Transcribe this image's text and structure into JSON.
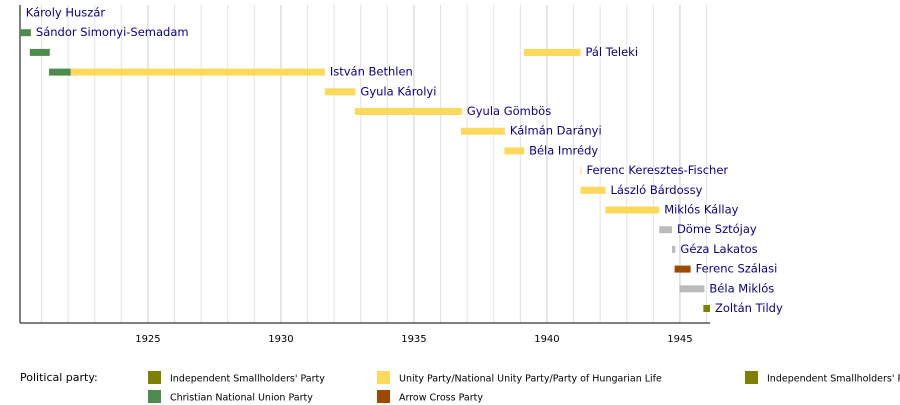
{
  "chart_data": {
    "type": "timeline",
    "xlim": [
      1920.19,
      1946.13
    ],
    "xticks": [
      1925,
      1930,
      1935,
      1940,
      1945
    ],
    "minor_xticks": [
      1921,
      1922,
      1923,
      1924,
      1925,
      1926,
      1927,
      1928,
      1929,
      1930,
      1931,
      1932,
      1933,
      1934,
      1935,
      1936,
      1937,
      1938,
      1939,
      1940,
      1941,
      1942,
      1943,
      1944,
      1945,
      1946
    ],
    "grid": true,
    "rows": [
      {
        "name": "Károly Huszár",
        "segments": [
          {
            "start": 1920.19,
            "end": 1920.22,
            "color": "#4e8b4e"
          }
        ]
      },
      {
        "name": "Sándor Simonyi-Semadam",
        "segments": [
          {
            "start": 1920.19,
            "end": 1920.6,
            "color": "#4e8b4e"
          }
        ]
      },
      {
        "name": "Pál Teleki",
        "segments": [
          {
            "start": 1920.56,
            "end": 1921.31,
            "color": "#4e8b4e"
          },
          {
            "start": 1939.14,
            "end": 1941.26,
            "color": "#fcd95a"
          }
        ]
      },
      {
        "name": "István Bethlen",
        "segments": [
          {
            "start": 1921.28,
            "end": 1922.1,
            "color": "#4e8b4e"
          },
          {
            "start": 1922.1,
            "end": 1931.65,
            "color": "#fcd95a"
          }
        ]
      },
      {
        "name": "Gyula Károlyi",
        "segments": [
          {
            "start": 1931.65,
            "end": 1932.8,
            "color": "#fcd95a"
          }
        ]
      },
      {
        "name": "Gyula Gömbös",
        "segments": [
          {
            "start": 1932.78,
            "end": 1936.8,
            "color": "#fcd95a"
          }
        ]
      },
      {
        "name": "Kálmán Darányi",
        "segments": [
          {
            "start": 1936.77,
            "end": 1938.42,
            "color": "#fcd95a"
          }
        ]
      },
      {
        "name": "Béla Imrédy",
        "segments": [
          {
            "start": 1938.4,
            "end": 1939.14,
            "color": "#fcd95a"
          }
        ]
      },
      {
        "name": "Ferenc Keresztes-Fischer",
        "segments": [
          {
            "start": 1941.26,
            "end": 1941.3,
            "color": "#fcd95a"
          }
        ]
      },
      {
        "name": "László Bárdossy",
        "segments": [
          {
            "start": 1941.26,
            "end": 1942.2,
            "color": "#fcd95a"
          }
        ]
      },
      {
        "name": "Miklós Kállay",
        "segments": [
          {
            "start": 1942.2,
            "end": 1944.22,
            "color": "#fcd95a"
          }
        ]
      },
      {
        "name": "Döme Sztójay",
        "segments": [
          {
            "start": 1944.22,
            "end": 1944.7,
            "color": "#bbbbbb"
          }
        ]
      },
      {
        "name": "Géza Lakatos",
        "segments": [
          {
            "start": 1944.7,
            "end": 1944.83,
            "color": "#bbbbbb"
          }
        ]
      },
      {
        "name": "Ferenc Szálasi",
        "segments": [
          {
            "start": 1944.8,
            "end": 1945.4,
            "color": "#9b4a00"
          }
        ]
      },
      {
        "name": "Béla Miklós",
        "segments": [
          {
            "start": 1944.98,
            "end": 1945.92,
            "color": "#bbbbbb"
          }
        ]
      },
      {
        "name": "Zoltán Tildy",
        "segments": [
          {
            "start": 1945.88,
            "end": 1946.13,
            "color": "#808000"
          }
        ]
      }
    ],
    "legend_title": "Political party:",
    "legend": [
      {
        "name": "Independent Smallholders' Party",
        "color": "#808000"
      },
      {
        "name": "Christian National Union Party",
        "color": "#4e8b4e"
      },
      {
        "name": "Unity Party/National Unity Party/Party of Hungarian Life",
        "color": "#fcd95a"
      },
      {
        "name": "Arrow Cross Party",
        "color": "#9b4a00"
      },
      {
        "name": "Independent Smallholders' Party",
        "color": "#808000"
      }
    ]
  }
}
